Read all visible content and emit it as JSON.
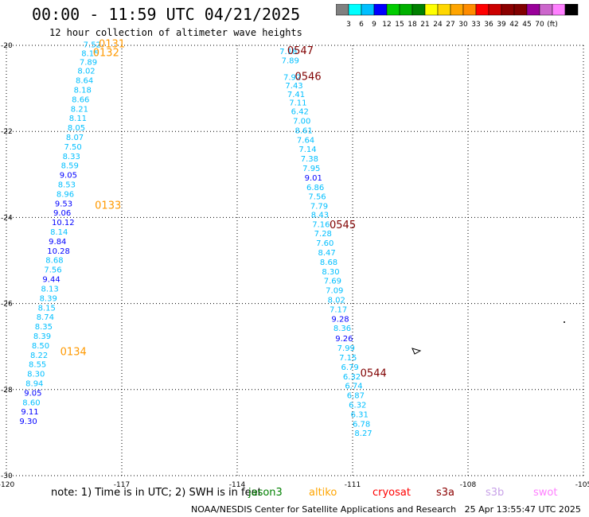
{
  "header": {
    "title": "00:00 - 11:59 UTC 04/21/2025",
    "subtitle": "12 hour collection of altimeter wave heights"
  },
  "colorbar": {
    "colors": [
      "#808080",
      "#00ffff",
      "#00bfff",
      "#0000ff",
      "#00cc00",
      "#00b000",
      "#008000",
      "#ffff00",
      "#ffd700",
      "#ffa500",
      "#ff8c00",
      "#ff0000",
      "#cc0000",
      "#8b0000",
      "#800000",
      "#990099",
      "#cc66cc",
      "#ff80ff",
      "#000000"
    ],
    "labels": [
      "3",
      "6",
      "9",
      "12",
      "15",
      "18",
      "21",
      "24",
      "27",
      "30",
      "33",
      "36",
      "39",
      "42",
      "45",
      "70",
      "(ft)"
    ]
  },
  "map": {
    "lon_ticks": [
      -120,
      -117,
      -114,
      -111,
      -108,
      -105
    ],
    "lat_ticks": [
      -20,
      -22,
      -24,
      -26,
      -28,
      -30
    ],
    "lon_labels": [
      "-120",
      "-117",
      "-114",
      "-111",
      "-108",
      "-105"
    ],
    "lat_labels": [
      "-20",
      "-22",
      "-24",
      "-26",
      "-28",
      "-30"
    ],
    "lon_range": [
      -120,
      -105
    ],
    "lat_range": [
      -30,
      -20
    ],
    "grid": true
  },
  "passes": [
    {
      "label": "0131",
      "lon": -117.6,
      "lat": -20.05
    },
    {
      "label": "0132",
      "lon": -117.75,
      "lat": -20.25
    },
    {
      "label": "0133",
      "lon": -117.7,
      "lat": -23.8
    },
    {
      "label": "0134",
      "lon": -118.6,
      "lat": -27.2
    },
    {
      "label": "0547",
      "lon": -112.7,
      "lat": -20.2
    },
    {
      "label": "0546",
      "lon": -112.5,
      "lat": -20.8
    },
    {
      "label": "0545",
      "lon": -111.6,
      "lat": -24.25
    },
    {
      "label": "0544",
      "lon": -110.8,
      "lat": -27.7
    }
  ],
  "points": [
    {
      "value": "7.52",
      "lon": -118.0,
      "lat": -20.05,
      "color": "#00bfff"
    },
    {
      "value": "8.15",
      "lon": -118.05,
      "lat": -20.25,
      "color": "#00bfff"
    },
    {
      "value": "7.89",
      "lon": -118.1,
      "lat": -20.45,
      "color": "#00bfff"
    },
    {
      "value": "8.02",
      "lon": -118.15,
      "lat": -20.66,
      "color": "#00bfff"
    },
    {
      "value": "8.64",
      "lon": -118.2,
      "lat": -20.88,
      "color": "#00bfff"
    },
    {
      "value": "8.18",
      "lon": -118.25,
      "lat": -21.1,
      "color": "#00bfff"
    },
    {
      "value": "8.66",
      "lon": -118.3,
      "lat": -21.32,
      "color": "#00bfff"
    },
    {
      "value": "8.21",
      "lon": -118.33,
      "lat": -21.54,
      "color": "#00bfff"
    },
    {
      "value": "8.11",
      "lon": -118.37,
      "lat": -21.76,
      "color": "#00bfff"
    },
    {
      "value": "8.05",
      "lon": -118.41,
      "lat": -21.98,
      "color": "#00bfff"
    },
    {
      "value": "8.07",
      "lon": -118.45,
      "lat": -22.2,
      "color": "#00bfff"
    },
    {
      "value": "7.50",
      "lon": -118.5,
      "lat": -22.42,
      "color": "#00bfff"
    },
    {
      "value": "8.33",
      "lon": -118.54,
      "lat": -22.64,
      "color": "#00bfff"
    },
    {
      "value": "8.59",
      "lon": -118.58,
      "lat": -22.86,
      "color": "#00bfff"
    },
    {
      "value": "9.05",
      "lon": -118.62,
      "lat": -23.08,
      "color": "#0000ff"
    },
    {
      "value": "8.53",
      "lon": -118.66,
      "lat": -23.3,
      "color": "#00bfff"
    },
    {
      "value": "8.96",
      "lon": -118.7,
      "lat": -23.52,
      "color": "#00bfff"
    },
    {
      "value": "9.53",
      "lon": -118.74,
      "lat": -23.74,
      "color": "#0000ff"
    },
    {
      "value": "9.06",
      "lon": -118.78,
      "lat": -23.96,
      "color": "#0000ff"
    },
    {
      "value": "10.12",
      "lon": -118.82,
      "lat": -24.18,
      "color": "#0000ff"
    },
    {
      "value": "8.14",
      "lon": -118.86,
      "lat": -24.4,
      "color": "#00bfff"
    },
    {
      "value": "9.84",
      "lon": -118.9,
      "lat": -24.62,
      "color": "#0000ff"
    },
    {
      "value": "10.28",
      "lon": -118.94,
      "lat": -24.84,
      "color": "#0000ff"
    },
    {
      "value": "8.68",
      "lon": -118.98,
      "lat": -25.06,
      "color": "#00bfff"
    },
    {
      "value": "7.56",
      "lon": -119.02,
      "lat": -25.28,
      "color": "#00bfff"
    },
    {
      "value": "9.44",
      "lon": -119.06,
      "lat": -25.5,
      "color": "#0000ff"
    },
    {
      "value": "8.13",
      "lon": -119.1,
      "lat": -25.72,
      "color": "#00bfff"
    },
    {
      "value": "8.39",
      "lon": -119.14,
      "lat": -25.94,
      "color": "#00bfff"
    },
    {
      "value": "8.15",
      "lon": -119.18,
      "lat": -26.16,
      "color": "#00bfff"
    },
    {
      "value": "8.74",
      "lon": -119.22,
      "lat": -26.38,
      "color": "#00bfff"
    },
    {
      "value": "8.35",
      "lon": -119.26,
      "lat": -26.6,
      "color": "#00bfff"
    },
    {
      "value": "8.39",
      "lon": -119.3,
      "lat": -26.82,
      "color": "#00bfff"
    },
    {
      "value": "8.50",
      "lon": -119.34,
      "lat": -27.04,
      "color": "#00bfff"
    },
    {
      "value": "8.22",
      "lon": -119.38,
      "lat": -27.26,
      "color": "#00bfff"
    },
    {
      "value": "8.55",
      "lon": -119.42,
      "lat": -27.48,
      "color": "#00bfff"
    },
    {
      "value": "8.30",
      "lon": -119.46,
      "lat": -27.7,
      "color": "#00bfff"
    },
    {
      "value": "8.94",
      "lon": -119.5,
      "lat": -27.92,
      "color": "#00bfff"
    },
    {
      "value": "9.05",
      "lon": -119.54,
      "lat": -28.14,
      "color": "#0000ff"
    },
    {
      "value": "8.60",
      "lon": -119.58,
      "lat": -28.36,
      "color": "#00bfff"
    },
    {
      "value": "9.11",
      "lon": -119.62,
      "lat": -28.58,
      "color": "#0000ff"
    },
    {
      "value": "9.30",
      "lon": -119.66,
      "lat": -28.8,
      "color": "#0000ff"
    },
    {
      "value": "7.18",
      "lon": -112.9,
      "lat": -20.2,
      "color": "#00bfff"
    },
    {
      "value": "7.89",
      "lon": -112.85,
      "lat": -20.42,
      "color": "#00bfff"
    },
    {
      "value": "7.92",
      "lon": -112.8,
      "lat": -20.8,
      "color": "#00bfff"
    },
    {
      "value": "7.43",
      "lon": -112.75,
      "lat": -21.0,
      "color": "#00bfff"
    },
    {
      "value": "7.41",
      "lon": -112.7,
      "lat": -21.2,
      "color": "#00bfff"
    },
    {
      "value": "7.11",
      "lon": -112.65,
      "lat": -21.4,
      "color": "#00bfff"
    },
    {
      "value": "6.42",
      "lon": -112.6,
      "lat": -21.6,
      "color": "#00bfff"
    },
    {
      "value": "7.00",
      "lon": -112.55,
      "lat": -21.82,
      "color": "#00bfff"
    },
    {
      "value": "8.61",
      "lon": -112.5,
      "lat": -22.04,
      "color": "#00bfff"
    },
    {
      "value": "7.64",
      "lon": -112.45,
      "lat": -22.26,
      "color": "#00bfff"
    },
    {
      "value": "7.14",
      "lon": -112.4,
      "lat": -22.48,
      "color": "#00bfff"
    },
    {
      "value": "7.38",
      "lon": -112.35,
      "lat": -22.7,
      "color": "#00bfff"
    },
    {
      "value": "7.95",
      "lon": -112.3,
      "lat": -22.92,
      "color": "#00bfff"
    },
    {
      "value": "9.01",
      "lon": -112.25,
      "lat": -23.14,
      "color": "#0000ff"
    },
    {
      "value": "6.86",
      "lon": -112.2,
      "lat": -23.36,
      "color": "#00bfff"
    },
    {
      "value": "7.56",
      "lon": -112.15,
      "lat": -23.58,
      "color": "#00bfff"
    },
    {
      "value": "7.79",
      "lon": -112.1,
      "lat": -23.8,
      "color": "#00bfff"
    },
    {
      "value": "8.43",
      "lon": -112.08,
      "lat": -24.0,
      "color": "#00bfff"
    },
    {
      "value": "7.16",
      "lon": -112.05,
      "lat": -24.22,
      "color": "#00bfff"
    },
    {
      "value": "7.28",
      "lon": -112.0,
      "lat": -24.44,
      "color": "#00bfff"
    },
    {
      "value": "7.60",
      "lon": -111.95,
      "lat": -24.66,
      "color": "#00bfff"
    },
    {
      "value": "8.47",
      "lon": -111.9,
      "lat": -24.88,
      "color": "#00bfff"
    },
    {
      "value": "8.68",
      "lon": -111.85,
      "lat": -25.1,
      "color": "#00bfff"
    },
    {
      "value": "8.30",
      "lon": -111.8,
      "lat": -25.32,
      "color": "#00bfff"
    },
    {
      "value": "7.69",
      "lon": -111.75,
      "lat": -25.54,
      "color": "#00bfff"
    },
    {
      "value": "7.09",
      "lon": -111.7,
      "lat": -25.76,
      "color": "#00bfff"
    },
    {
      "value": "8.02",
      "lon": -111.65,
      "lat": -25.98,
      "color": "#00bfff"
    },
    {
      "value": "7.17",
      "lon": -111.6,
      "lat": -26.2,
      "color": "#00bfff"
    },
    {
      "value": "9.28",
      "lon": -111.55,
      "lat": -26.42,
      "color": "#0000ff"
    },
    {
      "value": "8.36",
      "lon": -111.5,
      "lat": -26.64,
      "color": "#00bfff"
    },
    {
      "value": "9.26",
      "lon": -111.45,
      "lat": -26.88,
      "color": "#0000ff"
    },
    {
      "value": "7.99",
      "lon": -111.4,
      "lat": -27.1,
      "color": "#00bfff"
    },
    {
      "value": "7.15",
      "lon": -111.35,
      "lat": -27.32,
      "color": "#00bfff"
    },
    {
      "value": "6.79",
      "lon": -111.3,
      "lat": -27.54,
      "color": "#00bfff"
    },
    {
      "value": "6.32",
      "lon": -111.25,
      "lat": -27.76,
      "color": "#00bfff"
    },
    {
      "value": "6.74",
      "lon": -111.2,
      "lat": -27.98,
      "color": "#00bfff"
    },
    {
      "value": "6.87",
      "lon": -111.15,
      "lat": -28.2,
      "color": "#00bfff"
    },
    {
      "value": "6.32",
      "lon": -111.1,
      "lat": -28.42,
      "color": "#00bfff"
    },
    {
      "value": "6.31",
      "lon": -111.05,
      "lat": -28.64,
      "color": "#00bfff"
    },
    {
      "value": "6.78",
      "lon": -111.0,
      "lat": -28.86,
      "color": "#00bfff"
    },
    {
      "value": "8.27",
      "lon": -110.95,
      "lat": -29.08,
      "color": "#00bfff"
    }
  ],
  "footer": {
    "note": "note: 1) Time is in UTC; 2) SWH is in feet",
    "legend": [
      {
        "label": "jason3",
        "color": "#008000"
      },
      {
        "label": "altiko",
        "color": "#ffa500"
      },
      {
        "label": "cryosat",
        "color": "#ff0000"
      },
      {
        "label": "s3a",
        "color": "#8b0000"
      },
      {
        "label": "s3b",
        "color": "#c8a2e8"
      },
      {
        "label": "swot",
        "color": "#ff80ff"
      }
    ],
    "credit": "NOAA/NESDIS Center for Satellite Applications and Research   25 Apr 13:55:47 UTC 2025"
  }
}
